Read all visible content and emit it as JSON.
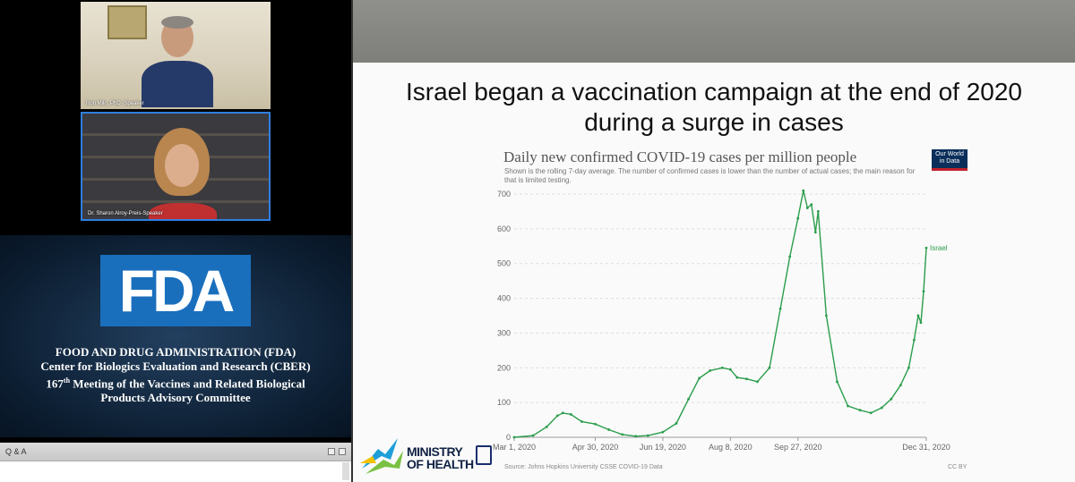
{
  "video": {
    "speaker1_name": "Ron Milo, PhD -Speaker",
    "speaker2_name": "Dr. Sharon Alroy-Preis-Speaker"
  },
  "fda_panel": {
    "logo_text": "FDA",
    "line1": "FOOD AND DRUG ADMINISTRATION (FDA)",
    "line2": "Center for Biologics Evaluation and Research (CBER)",
    "line3_pre": "167",
    "line3_sup": "th",
    "line3_post": "  Meeting of the Vaccines and Related Biological",
    "line4": "Products Advisory Committee",
    "brand_color": "#1a6fbd"
  },
  "qa_panel": {
    "title": "Q & A"
  },
  "slide": {
    "title_line1": "Israel began a vaccination campaign at the end of 2020",
    "title_line2": "during a surge in cases",
    "owid_line1": "Our World",
    "owid_line2": "in Data",
    "source": "Source: Johns Hopkins University CSSE COVID-19 Data",
    "license": "CC BY",
    "moh_line1": "MINISTRY",
    "moh_line2": "OF HEALTH"
  },
  "chart_data": {
    "type": "line",
    "title": "Daily new confirmed COVID-19 cases per million people",
    "subtitle": "Shown is the rolling 7-day average. The number of confirmed cases is lower than the number of actual cases; the main reason for that is limited testing.",
    "xlabel": "",
    "ylabel": "",
    "ylim": [
      0,
      700
    ],
    "yticks": [
      0,
      100,
      200,
      300,
      400,
      500,
      600,
      700
    ],
    "xlim": [
      "2020-03-01",
      "2020-12-31"
    ],
    "xticks": [
      {
        "date": "2020-03-01",
        "label": "Mar 1, 2020"
      },
      {
        "date": "2020-04-30",
        "label": "Apr 30, 2020"
      },
      {
        "date": "2020-06-19",
        "label": "Jun 19, 2020"
      },
      {
        "date": "2020-08-08",
        "label": "Aug 8, 2020"
      },
      {
        "date": "2020-09-27",
        "label": "Sep 27, 2020"
      },
      {
        "date": "2020-12-31",
        "label": "Dec 31, 2020"
      }
    ],
    "grid": true,
    "line_color": "#2a9d4b",
    "series": [
      {
        "name": "Israel",
        "points": [
          [
            "2020-03-01",
            0
          ],
          [
            "2020-03-15",
            5
          ],
          [
            "2020-03-25",
            30
          ],
          [
            "2020-04-02",
            62
          ],
          [
            "2020-04-06",
            70
          ],
          [
            "2020-04-12",
            66
          ],
          [
            "2020-04-20",
            45
          ],
          [
            "2020-04-30",
            38
          ],
          [
            "2020-05-10",
            22
          ],
          [
            "2020-05-20",
            8
          ],
          [
            "2020-05-30",
            3
          ],
          [
            "2020-06-08",
            5
          ],
          [
            "2020-06-19",
            15
          ],
          [
            "2020-06-29",
            40
          ],
          [
            "2020-07-08",
            110
          ],
          [
            "2020-07-16",
            170
          ],
          [
            "2020-07-24",
            192
          ],
          [
            "2020-08-02",
            200
          ],
          [
            "2020-08-08",
            195
          ],
          [
            "2020-08-13",
            172
          ],
          [
            "2020-08-20",
            168
          ],
          [
            "2020-08-28",
            160
          ],
          [
            "2020-09-06",
            200
          ],
          [
            "2020-09-14",
            370
          ],
          [
            "2020-09-21",
            520
          ],
          [
            "2020-09-27",
            630
          ],
          [
            "2020-10-01",
            710
          ],
          [
            "2020-10-04",
            660
          ],
          [
            "2020-10-07",
            670
          ],
          [
            "2020-10-10",
            590
          ],
          [
            "2020-10-12",
            650
          ],
          [
            "2020-10-18",
            350
          ],
          [
            "2020-10-26",
            160
          ],
          [
            "2020-11-03",
            90
          ],
          [
            "2020-11-12",
            78
          ],
          [
            "2020-11-20",
            70
          ],
          [
            "2020-11-28",
            85
          ],
          [
            "2020-12-05",
            110
          ],
          [
            "2020-12-12",
            150
          ],
          [
            "2020-12-18",
            200
          ],
          [
            "2020-12-22",
            280
          ],
          [
            "2020-12-25",
            350
          ],
          [
            "2020-12-27",
            330
          ],
          [
            "2020-12-29",
            420
          ],
          [
            "2020-12-31",
            545
          ]
        ]
      }
    ]
  }
}
